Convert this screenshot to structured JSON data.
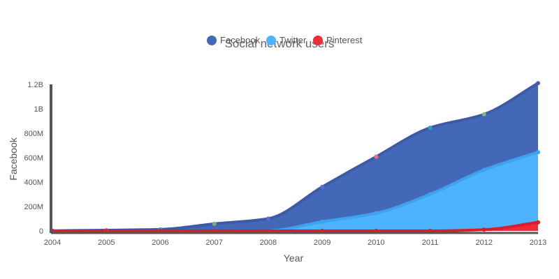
{
  "chart_data": {
    "type": "area",
    "title": "Social network users",
    "xlabel": "Year",
    "ylabel": "Facebook",
    "x": [
      2004,
      2005,
      2006,
      2007,
      2008,
      2009,
      2010,
      2011,
      2012,
      2013
    ],
    "ylim": [
      0,
      1200000000
    ],
    "yticks": [
      {
        "value": 0,
        "label": "0"
      },
      {
        "value": 200000000,
        "label": "200M"
      },
      {
        "value": 400000000,
        "label": "400M"
      },
      {
        "value": 600000000,
        "label": "600M"
      },
      {
        "value": 800000000,
        "label": "800M"
      },
      {
        "value": 1000000000,
        "label": "1B"
      },
      {
        "value": 1200000000,
        "label": "1.2B"
      }
    ],
    "stacked": false,
    "grid": false,
    "legend_position": "top-center",
    "series": [
      {
        "name": "Facebook",
        "color": "#3e5aa6",
        "fill": "#4468b8",
        "values": [
          1000000,
          6000000,
          12000000,
          58000000,
          100000000,
          360000000,
          608000000,
          845000000,
          955000000,
          1210000000
        ]
      },
      {
        "name": "Twitter",
        "color": "#3fa2ef",
        "fill": "#4db3ff",
        "values": [
          0,
          0,
          0,
          0,
          1000000,
          75000000,
          145000000,
          300000000,
          500000000,
          645000000
        ]
      },
      {
        "name": "Pinterest",
        "color": "#d81e2a",
        "fill": "#ef2b38",
        "values": [
          0,
          0,
          0,
          0,
          0,
          0,
          0,
          0,
          10000000,
          70000000
        ]
      }
    ],
    "point_colors": [
      "#4d5cc8",
      "#e57373",
      "#3d9a8a",
      "#78b07a",
      "#5b6bd6",
      "#5b6bd6",
      "#ef6c90",
      "#2aa3b3",
      "#7bb58b",
      "#4b5db8"
    ]
  }
}
